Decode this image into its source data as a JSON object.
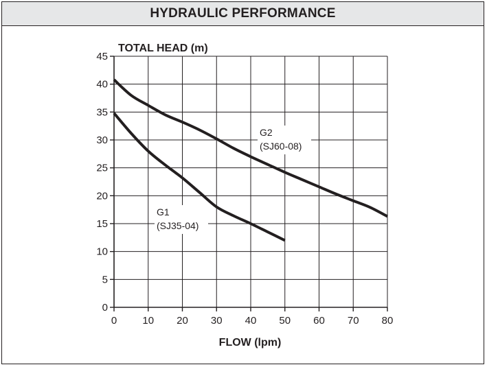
{
  "header": {
    "title": "HYDRAULIC PERFORMANCE"
  },
  "colors": {
    "ink": "#231f20",
    "header_bg": "#e6e7e8",
    "grid": "#231f20"
  },
  "chart_data": {
    "type": "line",
    "title": "HYDRAULIC PERFORMANCE",
    "xlabel": "FLOW (lpm)",
    "ylabel": "TOTAL HEAD (m)",
    "xlim": [
      0,
      80
    ],
    "ylim": [
      0,
      45
    ],
    "x_ticks": [
      0,
      10,
      20,
      30,
      40,
      50,
      60,
      70,
      80
    ],
    "y_ticks": [
      0,
      5,
      10,
      15,
      20,
      25,
      30,
      35,
      40,
      45
    ],
    "grid": true,
    "legend": "none",
    "series": [
      {
        "name": "G1 (SJ35-04)",
        "label_lines": [
          "G1",
          "(SJ35-04)"
        ],
        "x": [
          0,
          5,
          10,
          15,
          20,
          25,
          30,
          35,
          40,
          45,
          50
        ],
        "y": [
          34.8,
          31.2,
          28,
          25.5,
          23.2,
          20.6,
          18,
          16.4,
          15,
          13.5,
          12
        ]
      },
      {
        "name": "G2 (SJ60-08)",
        "label_lines": [
          "G2",
          "(SJ60-08)"
        ],
        "x": [
          0,
          5,
          10,
          15,
          20,
          25,
          30,
          35,
          40,
          45,
          50,
          55,
          60,
          65,
          70,
          75,
          80
        ],
        "y": [
          40.8,
          38,
          36.2,
          34.5,
          33.2,
          31.8,
          30.2,
          28.5,
          27,
          25.6,
          24.2,
          22.9,
          21.6,
          20.3,
          19.1,
          17.9,
          16.3
        ]
      }
    ]
  }
}
